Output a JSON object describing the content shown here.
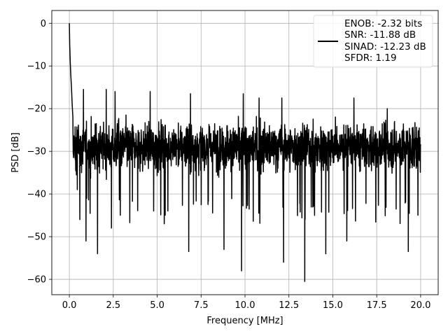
{
  "chart_data": {
    "type": "line",
    "xlabel": "Frequency [MHz]",
    "ylabel": "PSD [dB]",
    "xlim": [
      -1.0,
      21.0
    ],
    "ylim": [
      -63.6,
      3.0
    ],
    "xticks": [
      0.0,
      2.5,
      5.0,
      7.5,
      10.0,
      12.5,
      15.0,
      17.5,
      20.0
    ],
    "xtick_labels": [
      "0.0",
      "2.5",
      "5.0",
      "7.5",
      "10.0",
      "12.5",
      "15.0",
      "17.5",
      "20.0"
    ],
    "yticks": [
      0,
      -10,
      -20,
      -30,
      -40,
      -50,
      -60
    ],
    "ytick_labels": [
      "0",
      "−10",
      "−20",
      "−30",
      "−40",
      "−50",
      "−60"
    ],
    "grid": true,
    "legend_position": "top-right",
    "series": [
      {
        "legend_lines": [
          "ENOB: -2.32 bits",
          "SNR: -11.88 dB",
          "SINAD: -12.23 dB",
          "SFDR: 1.19"
        ],
        "color": "#000000",
        "description": "noise spectrum",
        "x_range": [
          0.0,
          20.0
        ],
        "peak": {
          "x": 0.0,
          "y": 0.0
        },
        "initial_rolloff": [
          [
            0.0,
            0.0
          ],
          [
            0.02,
            -5
          ],
          [
            0.05,
            -9
          ],
          [
            0.08,
            -12
          ],
          [
            0.12,
            -15
          ],
          [
            0.16,
            -19
          ],
          [
            0.2,
            -22
          ]
        ],
        "noise_floor_mean": -29,
        "noise_upper_envelope": -20,
        "noise_lower_envelope": -38,
        "notable_minima": [
          {
            "x": 0.4,
            "y": -35.5
          },
          {
            "x": 0.45,
            "y": -39
          },
          {
            "x": 0.6,
            "y": -46
          },
          {
            "x": 0.95,
            "y": -51
          },
          {
            "x": 1.6,
            "y": -54
          },
          {
            "x": 2.4,
            "y": -48
          },
          {
            "x": 2.9,
            "y": -45
          },
          {
            "x": 4.8,
            "y": -44
          },
          {
            "x": 5.4,
            "y": -47
          },
          {
            "x": 6.8,
            "y": -53.5
          },
          {
            "x": 8.8,
            "y": -53
          },
          {
            "x": 9.8,
            "y": -58
          },
          {
            "x": 12.2,
            "y": -56
          },
          {
            "x": 13.4,
            "y": -60.5
          },
          {
            "x": 14.6,
            "y": -54
          },
          {
            "x": 15.8,
            "y": -51
          },
          {
            "x": 19.3,
            "y": -53.5
          }
        ],
        "notable_maxima": [
          {
            "x": 0.8,
            "y": -15.5
          },
          {
            "x": 2.1,
            "y": -15.5
          },
          {
            "x": 2.6,
            "y": -16
          },
          {
            "x": 4.6,
            "y": -16
          },
          {
            "x": 6.9,
            "y": -16.5
          },
          {
            "x": 9.9,
            "y": -16.5
          },
          {
            "x": 10.8,
            "y": -17.5
          },
          {
            "x": 12.1,
            "y": -17.5
          },
          {
            "x": 16.2,
            "y": -17.5
          },
          {
            "x": 18.1,
            "y": -20
          }
        ]
      }
    ]
  }
}
